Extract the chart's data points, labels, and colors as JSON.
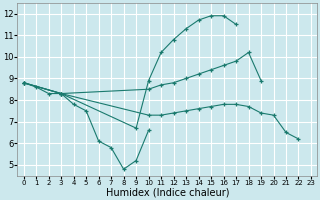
{
  "background_color": "#cce8ed",
  "line_color": "#1a7a6e",
  "grid_color": "#ffffff",
  "xlabel": "Humidex (Indice chaleur)",
  "xlim": [
    -0.5,
    23.5
  ],
  "ylim": [
    4.5,
    12.5
  ],
  "xticks": [
    0,
    1,
    2,
    3,
    4,
    5,
    6,
    7,
    8,
    9,
    10,
    11,
    12,
    13,
    14,
    15,
    16,
    17,
    18,
    19,
    20,
    21,
    22,
    23
  ],
  "yticks": [
    5,
    6,
    7,
    8,
    9,
    10,
    11,
    12
  ],
  "series": [
    {
      "x": [
        0,
        1,
        2,
        3,
        4,
        5,
        6,
        7,
        8,
        9,
        10
      ],
      "y": [
        8.8,
        8.6,
        8.3,
        8.3,
        7.8,
        7.5,
        6.1,
        5.8,
        4.8,
        5.2,
        6.6
      ]
    },
    {
      "x": [
        0,
        3,
        9,
        10,
        11,
        12,
        13,
        14,
        15,
        16,
        17
      ],
      "y": [
        8.8,
        8.3,
        6.7,
        8.9,
        10.2,
        10.8,
        11.3,
        11.7,
        11.9,
        11.9,
        11.5
      ]
    },
    {
      "x": [
        0,
        3,
        10,
        11,
        12,
        13,
        14,
        15,
        16,
        17,
        18,
        19
      ],
      "y": [
        8.8,
        8.3,
        8.5,
        8.7,
        8.8,
        9.0,
        9.2,
        9.4,
        9.6,
        9.8,
        10.2,
        8.9
      ]
    },
    {
      "x": [
        0,
        3,
        10,
        11,
        12,
        13,
        14,
        15,
        16,
        17,
        18,
        19,
        20,
        21,
        22
      ],
      "y": [
        8.8,
        8.3,
        7.3,
        7.3,
        7.4,
        7.5,
        7.6,
        7.7,
        7.8,
        7.8,
        7.7,
        7.4,
        7.3,
        6.5,
        6.2
      ]
    }
  ],
  "xlabel_fontsize": 7,
  "xtick_fontsize": 5,
  "ytick_fontsize": 6
}
